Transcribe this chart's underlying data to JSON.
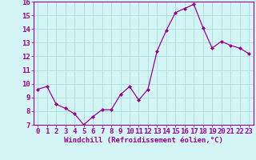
{
  "x": [
    0,
    1,
    2,
    3,
    4,
    5,
    6,
    7,
    8,
    9,
    10,
    11,
    12,
    13,
    14,
    15,
    16,
    17,
    18,
    19,
    20,
    21,
    22,
    23
  ],
  "y": [
    9.6,
    9.8,
    8.5,
    8.2,
    7.8,
    7.0,
    7.6,
    8.1,
    8.1,
    9.2,
    9.8,
    8.8,
    9.6,
    12.4,
    13.9,
    15.2,
    15.5,
    15.8,
    14.1,
    12.6,
    13.1,
    12.8,
    12.6,
    12.2
  ],
  "line_color": "#990099",
  "marker": "D",
  "marker_size": 2.0,
  "background_color": "#d4f5f5",
  "grid_color": "#b0dede",
  "spine_color": "#990099",
  "tick_color": "#990099",
  "label_color": "#990099",
  "xlabel": "Windchill (Refroidissement éolien,°C)",
  "ylabel": "",
  "ylim": [
    7,
    16
  ],
  "xlim": [
    -0.5,
    23.5
  ],
  "yticks": [
    7,
    8,
    9,
    10,
    11,
    12,
    13,
    14,
    15,
    16
  ],
  "xticks": [
    0,
    1,
    2,
    3,
    4,
    5,
    6,
    7,
    8,
    9,
    10,
    11,
    12,
    13,
    14,
    15,
    16,
    17,
    18,
    19,
    20,
    21,
    22,
    23
  ],
  "xlabel_fontsize": 6.5,
  "tick_fontsize": 6.5,
  "linewidth": 0.9
}
